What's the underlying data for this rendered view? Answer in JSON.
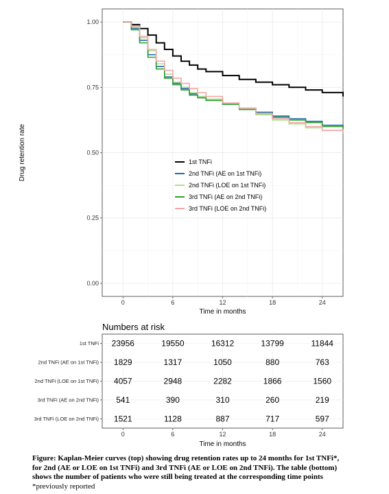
{
  "chart_data": [
    {
      "type": "line",
      "step": true,
      "xlabel": "Time in months",
      "ylabel": "Drug retention rate",
      "xlim": [
        -2.5,
        26.5
      ],
      "ylim": [
        -0.05,
        1.05
      ],
      "xticks": [
        0,
        6,
        12,
        18,
        24
      ],
      "yticks": [
        0.0,
        0.25,
        0.5,
        0.75,
        1.0
      ],
      "ytick_labels": [
        "0.00",
        "0.25",
        "0.50",
        "0.75",
        "1.00"
      ],
      "grid": true,
      "legend_position": "center",
      "series": [
        {
          "name": "1st TNFi",
          "color": "#000000",
          "x": [
            0,
            1,
            2,
            3,
            4,
            5,
            6,
            7,
            8,
            9,
            10,
            12,
            14,
            16,
            18,
            20,
            22,
            24,
            26.5
          ],
          "y": [
            1.0,
            0.99,
            0.975,
            0.95,
            0.92,
            0.895,
            0.87,
            0.85,
            0.835,
            0.82,
            0.81,
            0.795,
            0.78,
            0.77,
            0.76,
            0.75,
            0.74,
            0.73,
            0.715
          ]
        },
        {
          "name": "2nd TNFi (AE on 1st TNFi)",
          "color": "#2166ac",
          "x": [
            0,
            1,
            2,
            3,
            4,
            5,
            6,
            7,
            8,
            9,
            10,
            12,
            14,
            16,
            18,
            20,
            22,
            24,
            26.5
          ],
          "y": [
            1.0,
            0.975,
            0.93,
            0.875,
            0.83,
            0.79,
            0.765,
            0.745,
            0.725,
            0.71,
            0.7,
            0.685,
            0.67,
            0.655,
            0.64,
            0.63,
            0.62,
            0.605,
            0.595
          ]
        },
        {
          "name": "2nd TNFi (LOE on 1st TNFi)",
          "color": "#addd8e",
          "x": [
            0,
            1,
            2,
            3,
            4,
            5,
            6,
            7,
            8,
            9,
            10,
            12,
            14,
            16,
            18,
            20,
            22,
            24,
            26.5
          ],
          "y": [
            1.0,
            0.98,
            0.94,
            0.89,
            0.84,
            0.8,
            0.77,
            0.75,
            0.73,
            0.715,
            0.705,
            0.685,
            0.665,
            0.645,
            0.625,
            0.61,
            0.595,
            0.585,
            0.575
          ]
        },
        {
          "name": "3rd TNFi (AE on 2nd TNFi)",
          "color": "#2ca02c",
          "x": [
            0,
            1,
            2,
            3,
            4,
            5,
            6,
            7,
            8,
            9,
            10,
            12,
            14,
            16,
            18,
            20,
            22,
            24,
            26.5
          ],
          "y": [
            1.0,
            0.97,
            0.92,
            0.865,
            0.82,
            0.785,
            0.76,
            0.74,
            0.72,
            0.71,
            0.7,
            0.685,
            0.665,
            0.65,
            0.635,
            0.625,
            0.615,
            0.6,
            0.59
          ]
        },
        {
          "name": "3rd TNFi (LOE on 2nd TNFi)",
          "color": "#f4a6a6",
          "x": [
            0,
            1,
            2,
            3,
            4,
            5,
            6,
            7,
            8,
            9,
            10,
            12,
            14,
            16,
            18,
            20,
            22,
            24,
            26.5
          ],
          "y": [
            1.0,
            0.985,
            0.945,
            0.895,
            0.85,
            0.815,
            0.785,
            0.765,
            0.745,
            0.73,
            0.715,
            0.69,
            0.67,
            0.65,
            0.63,
            0.615,
            0.6,
            0.585,
            0.575
          ]
        }
      ]
    },
    {
      "type": "table",
      "title": "Numbers at risk",
      "xlabel": "Time in months",
      "columns": [
        "0",
        "6",
        "12",
        "18",
        "24"
      ],
      "rows": [
        {
          "label": "1st TNFi",
          "values": [
            23956,
            19550,
            16312,
            13799,
            11844
          ]
        },
        {
          "label": "2nd TNFi (AE on 1st TNFi)",
          "values": [
            1829,
            1317,
            1050,
            880,
            763
          ]
        },
        {
          "label": "2nd TNFi (LOE on 1st TNFi)",
          "values": [
            4057,
            2948,
            2282,
            1866,
            1560
          ]
        },
        {
          "label": "3rd TNFi (AE on 2nd TNFi)",
          "values": [
            541,
            390,
            310,
            260,
            219
          ]
        },
        {
          "label": "3rd TNFi (LOE on 2nd TNFi)",
          "values": [
            1521,
            1128,
            887,
            717,
            597
          ]
        }
      ]
    }
  ],
  "caption": {
    "prefix": "Figure:",
    "lines": [
      "Kaplan-Meier curves (top) showing drug retention rates up to 24 months for 1st TNFi*,",
      "for 2nd (AE or LOE on 1st TNFi) and 3rd TNFi (AE or LOE on 2nd TNFi). The table (bottom)",
      "shows the number of patients who were still being treated at the corresponding time points"
    ],
    "footnote": "*previously reported"
  }
}
